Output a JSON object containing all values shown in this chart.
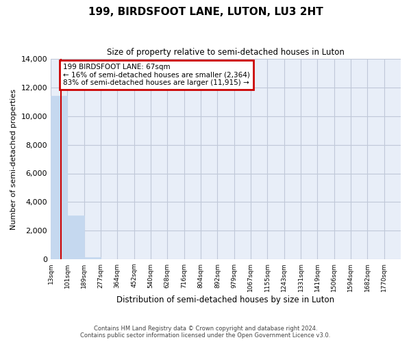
{
  "title": "199, BIRDSFOOT LANE, LUTON, LU3 2HT",
  "subtitle": "Size of property relative to semi-detached houses in Luton",
  "xlabel": "Distribution of semi-detached houses by size in Luton",
  "ylabel": "Number of semi-detached properties",
  "footer_line1": "Contains HM Land Registry data © Crown copyright and database right 2024.",
  "footer_line2": "Contains public sector information licensed under the Open Government Licence v3.0.",
  "bin_edges": [
    13,
    101,
    189,
    277,
    364,
    452,
    540,
    628,
    716,
    804,
    892,
    979,
    1067,
    1155,
    1243,
    1331,
    1419,
    1506,
    1594,
    1682,
    1770
  ],
  "bar_heights": [
    11400,
    3050,
    175,
    0,
    0,
    0,
    0,
    0,
    0,
    0,
    0,
    0,
    0,
    0,
    0,
    0,
    0,
    0,
    0,
    0
  ],
  "bar_color": "#c5d8ef",
  "bar_edgecolor": "#c5d8ef",
  "grid_color": "#c0c8d8",
  "background_color": "#e8eef8",
  "property_size": 67,
  "property_line_color": "#cc0000",
  "annotation_line1": "199 BIRDSFOOT LANE: 67sqm",
  "annotation_line2": "← 16% of semi-detached houses are smaller (2,364)",
  "annotation_line3": "83% of semi-detached houses are larger (11,915) →",
  "annotation_box_color": "#cc0000",
  "ylim": [
    0,
    14000
  ],
  "yticks": [
    0,
    2000,
    4000,
    6000,
    8000,
    10000,
    12000,
    14000
  ],
  "tick_labels": [
    "13sqm",
    "101sqm",
    "189sqm",
    "277sqm",
    "364sqm",
    "452sqm",
    "540sqm",
    "628sqm",
    "716sqm",
    "804sqm",
    "892sqm",
    "979sqm",
    "1067sqm",
    "1155sqm",
    "1243sqm",
    "1331sqm",
    "1419sqm",
    "1506sqm",
    "1594sqm",
    "1682sqm",
    "1770sqm"
  ]
}
